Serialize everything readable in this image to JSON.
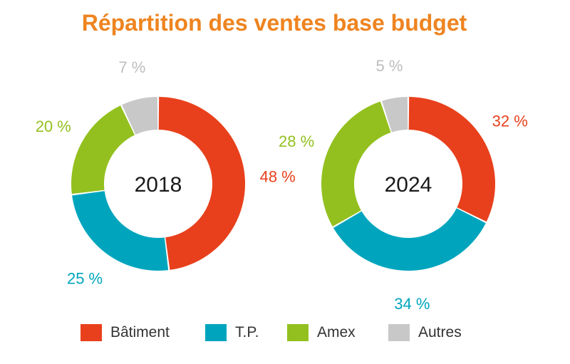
{
  "chart_data": {
    "type": "pie",
    "title": "Répartition des ventes base budget",
    "categories": [
      "Bâtiment",
      "T.P.",
      "Amex",
      "Autres"
    ],
    "colors": [
      "#E8401C",
      "#00A5BD",
      "#93C01F",
      "#C8C8C8"
    ],
    "legend_position": "bottom",
    "charts": [
      {
        "label": "2018",
        "values": [
          48,
          25,
          20,
          7
        ],
        "value_labels": [
          "48 %",
          "25 %",
          "20 %",
          "7 %"
        ]
      },
      {
        "label": "2024",
        "values": [
          32,
          34,
          28,
          5
        ],
        "value_labels": [
          "32 %",
          "34 %",
          "28 %",
          "5 %"
        ]
      }
    ]
  }
}
